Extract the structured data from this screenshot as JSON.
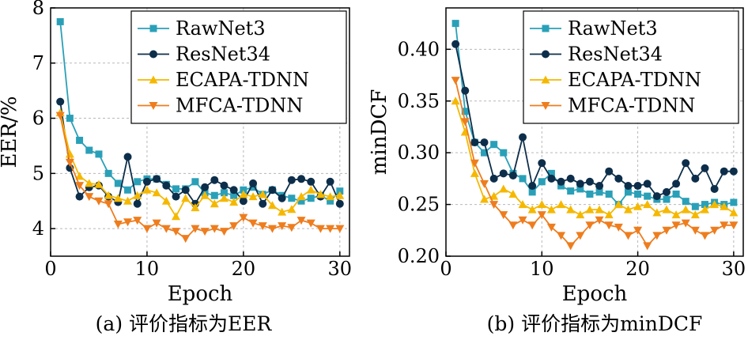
{
  "chart_data": [
    {
      "type": "line",
      "caption": "(a) 评价指标为EER",
      "xlabel": "Epoch",
      "ylabel": "EER/%",
      "xlim": [
        0,
        31
      ],
      "ylim": [
        3.5,
        8
      ],
      "xticks": [
        0,
        10,
        20,
        30
      ],
      "yticks": [
        4,
        5,
        6,
        7,
        8
      ],
      "grid": true,
      "legend_position": "top-right",
      "x": [
        1,
        2,
        3,
        4,
        5,
        6,
        7,
        8,
        9,
        10,
        11,
        12,
        13,
        14,
        15,
        16,
        17,
        18,
        19,
        20,
        21,
        22,
        23,
        24,
        25,
        26,
        27,
        28,
        29,
        30
      ],
      "series": [
        {
          "name": "RawNet3",
          "color": "#2aa0b8",
          "marker": "square",
          "values": [
            7.75,
            6.0,
            5.6,
            5.42,
            5.35,
            5.0,
            4.82,
            4.7,
            4.85,
            4.9,
            4.9,
            4.8,
            4.72,
            4.72,
            4.85,
            4.65,
            4.6,
            4.65,
            4.6,
            4.7,
            4.75,
            4.62,
            4.7,
            4.6,
            4.55,
            4.5,
            4.55,
            4.6,
            4.5,
            4.68
          ]
        },
        {
          "name": "ResNet34",
          "color": "#0d2e4a",
          "marker": "circle",
          "values": [
            6.3,
            5.1,
            4.58,
            4.75,
            4.78,
            4.58,
            4.48,
            5.3,
            4.45,
            4.85,
            4.9,
            4.78,
            4.58,
            4.7,
            4.45,
            4.75,
            4.88,
            4.78,
            4.7,
            4.5,
            4.82,
            4.45,
            4.7,
            4.55,
            4.88,
            4.9,
            4.85,
            4.58,
            4.85,
            4.45
          ]
        },
        {
          "name": "ECAPA-TDNN",
          "color": "#f5b800",
          "marker": "triangle-up",
          "values": [
            6.1,
            5.35,
            4.95,
            4.82,
            4.8,
            4.6,
            4.55,
            4.5,
            4.6,
            4.7,
            4.65,
            4.5,
            4.22,
            4.55,
            4.38,
            4.6,
            4.45,
            4.55,
            4.48,
            4.62,
            4.58,
            4.62,
            4.42,
            4.3,
            4.35,
            4.58,
            4.7,
            4.62,
            4.58,
            4.6
          ]
        },
        {
          "name": "MFCA-TDNN",
          "color": "#ee7d1e",
          "marker": "triangle-down",
          "values": [
            6.05,
            5.2,
            4.78,
            4.58,
            4.5,
            4.45,
            4.08,
            4.12,
            4.15,
            4.0,
            4.1,
            4.0,
            3.95,
            3.82,
            4.0,
            3.95,
            4.0,
            3.95,
            4.05,
            4.2,
            4.1,
            4.05,
            4.0,
            4.05,
            4.02,
            4.15,
            4.1,
            4.0,
            4.0,
            4.0
          ]
        }
      ]
    },
    {
      "type": "line",
      "caption": "(b) 评价指标为minDCF",
      "xlabel": "Epoch",
      "ylabel": "minDCF",
      "xlim": [
        0,
        31
      ],
      "ylim": [
        0.2,
        0.44
      ],
      "xticks": [
        0,
        10,
        20,
        30
      ],
      "yticks": [
        "0.20",
        "0.25",
        "0.30",
        "0.35",
        "0.40"
      ],
      "grid": true,
      "legend_position": "top-right",
      "x": [
        1,
        2,
        3,
        4,
        5,
        6,
        7,
        8,
        9,
        10,
        11,
        12,
        13,
        14,
        15,
        16,
        17,
        18,
        19,
        20,
        21,
        22,
        23,
        24,
        25,
        26,
        27,
        28,
        29,
        30
      ],
      "series": [
        {
          "name": "RawNet3",
          "color": "#2aa0b8",
          "marker": "square",
          "values": [
            0.425,
            0.34,
            0.31,
            0.3,
            0.308,
            0.3,
            0.28,
            0.275,
            0.262,
            0.272,
            0.28,
            0.268,
            0.263,
            0.265,
            0.26,
            0.262,
            0.26,
            0.25,
            0.262,
            0.26,
            0.258,
            0.255,
            0.255,
            0.26,
            0.253,
            0.248,
            0.25,
            0.252,
            0.25,
            0.252
          ]
        },
        {
          "name": "ResNet34",
          "color": "#0d2e4a",
          "marker": "circle",
          "values": [
            0.405,
            0.36,
            0.31,
            0.31,
            0.275,
            0.28,
            0.278,
            0.315,
            0.268,
            0.29,
            0.275,
            0.272,
            0.275,
            0.27,
            0.272,
            0.268,
            0.282,
            0.275,
            0.268,
            0.268,
            0.27,
            0.258,
            0.262,
            0.27,
            0.29,
            0.275,
            0.285,
            0.265,
            0.282,
            0.282
          ]
        },
        {
          "name": "ECAPA-TDNN",
          "color": "#f5b800",
          "marker": "triangle-up",
          "values": [
            0.35,
            0.32,
            0.28,
            0.255,
            0.258,
            0.265,
            0.26,
            0.25,
            0.245,
            0.25,
            0.245,
            0.25,
            0.245,
            0.24,
            0.245,
            0.245,
            0.24,
            0.25,
            0.245,
            0.248,
            0.25,
            0.242,
            0.245,
            0.24,
            0.245,
            0.24,
            0.245,
            0.25,
            0.248,
            0.242
          ]
        },
        {
          "name": "MFCA-TDNN",
          "color": "#ee7d1e",
          "marker": "triangle-down",
          "values": [
            0.37,
            0.33,
            0.29,
            0.27,
            0.25,
            0.24,
            0.23,
            0.235,
            0.23,
            0.24,
            0.228,
            0.22,
            0.21,
            0.22,
            0.23,
            0.235,
            0.23,
            0.228,
            0.22,
            0.225,
            0.21,
            0.22,
            0.225,
            0.23,
            0.232,
            0.225,
            0.22,
            0.225,
            0.23,
            0.23
          ]
        }
      ]
    }
  ]
}
